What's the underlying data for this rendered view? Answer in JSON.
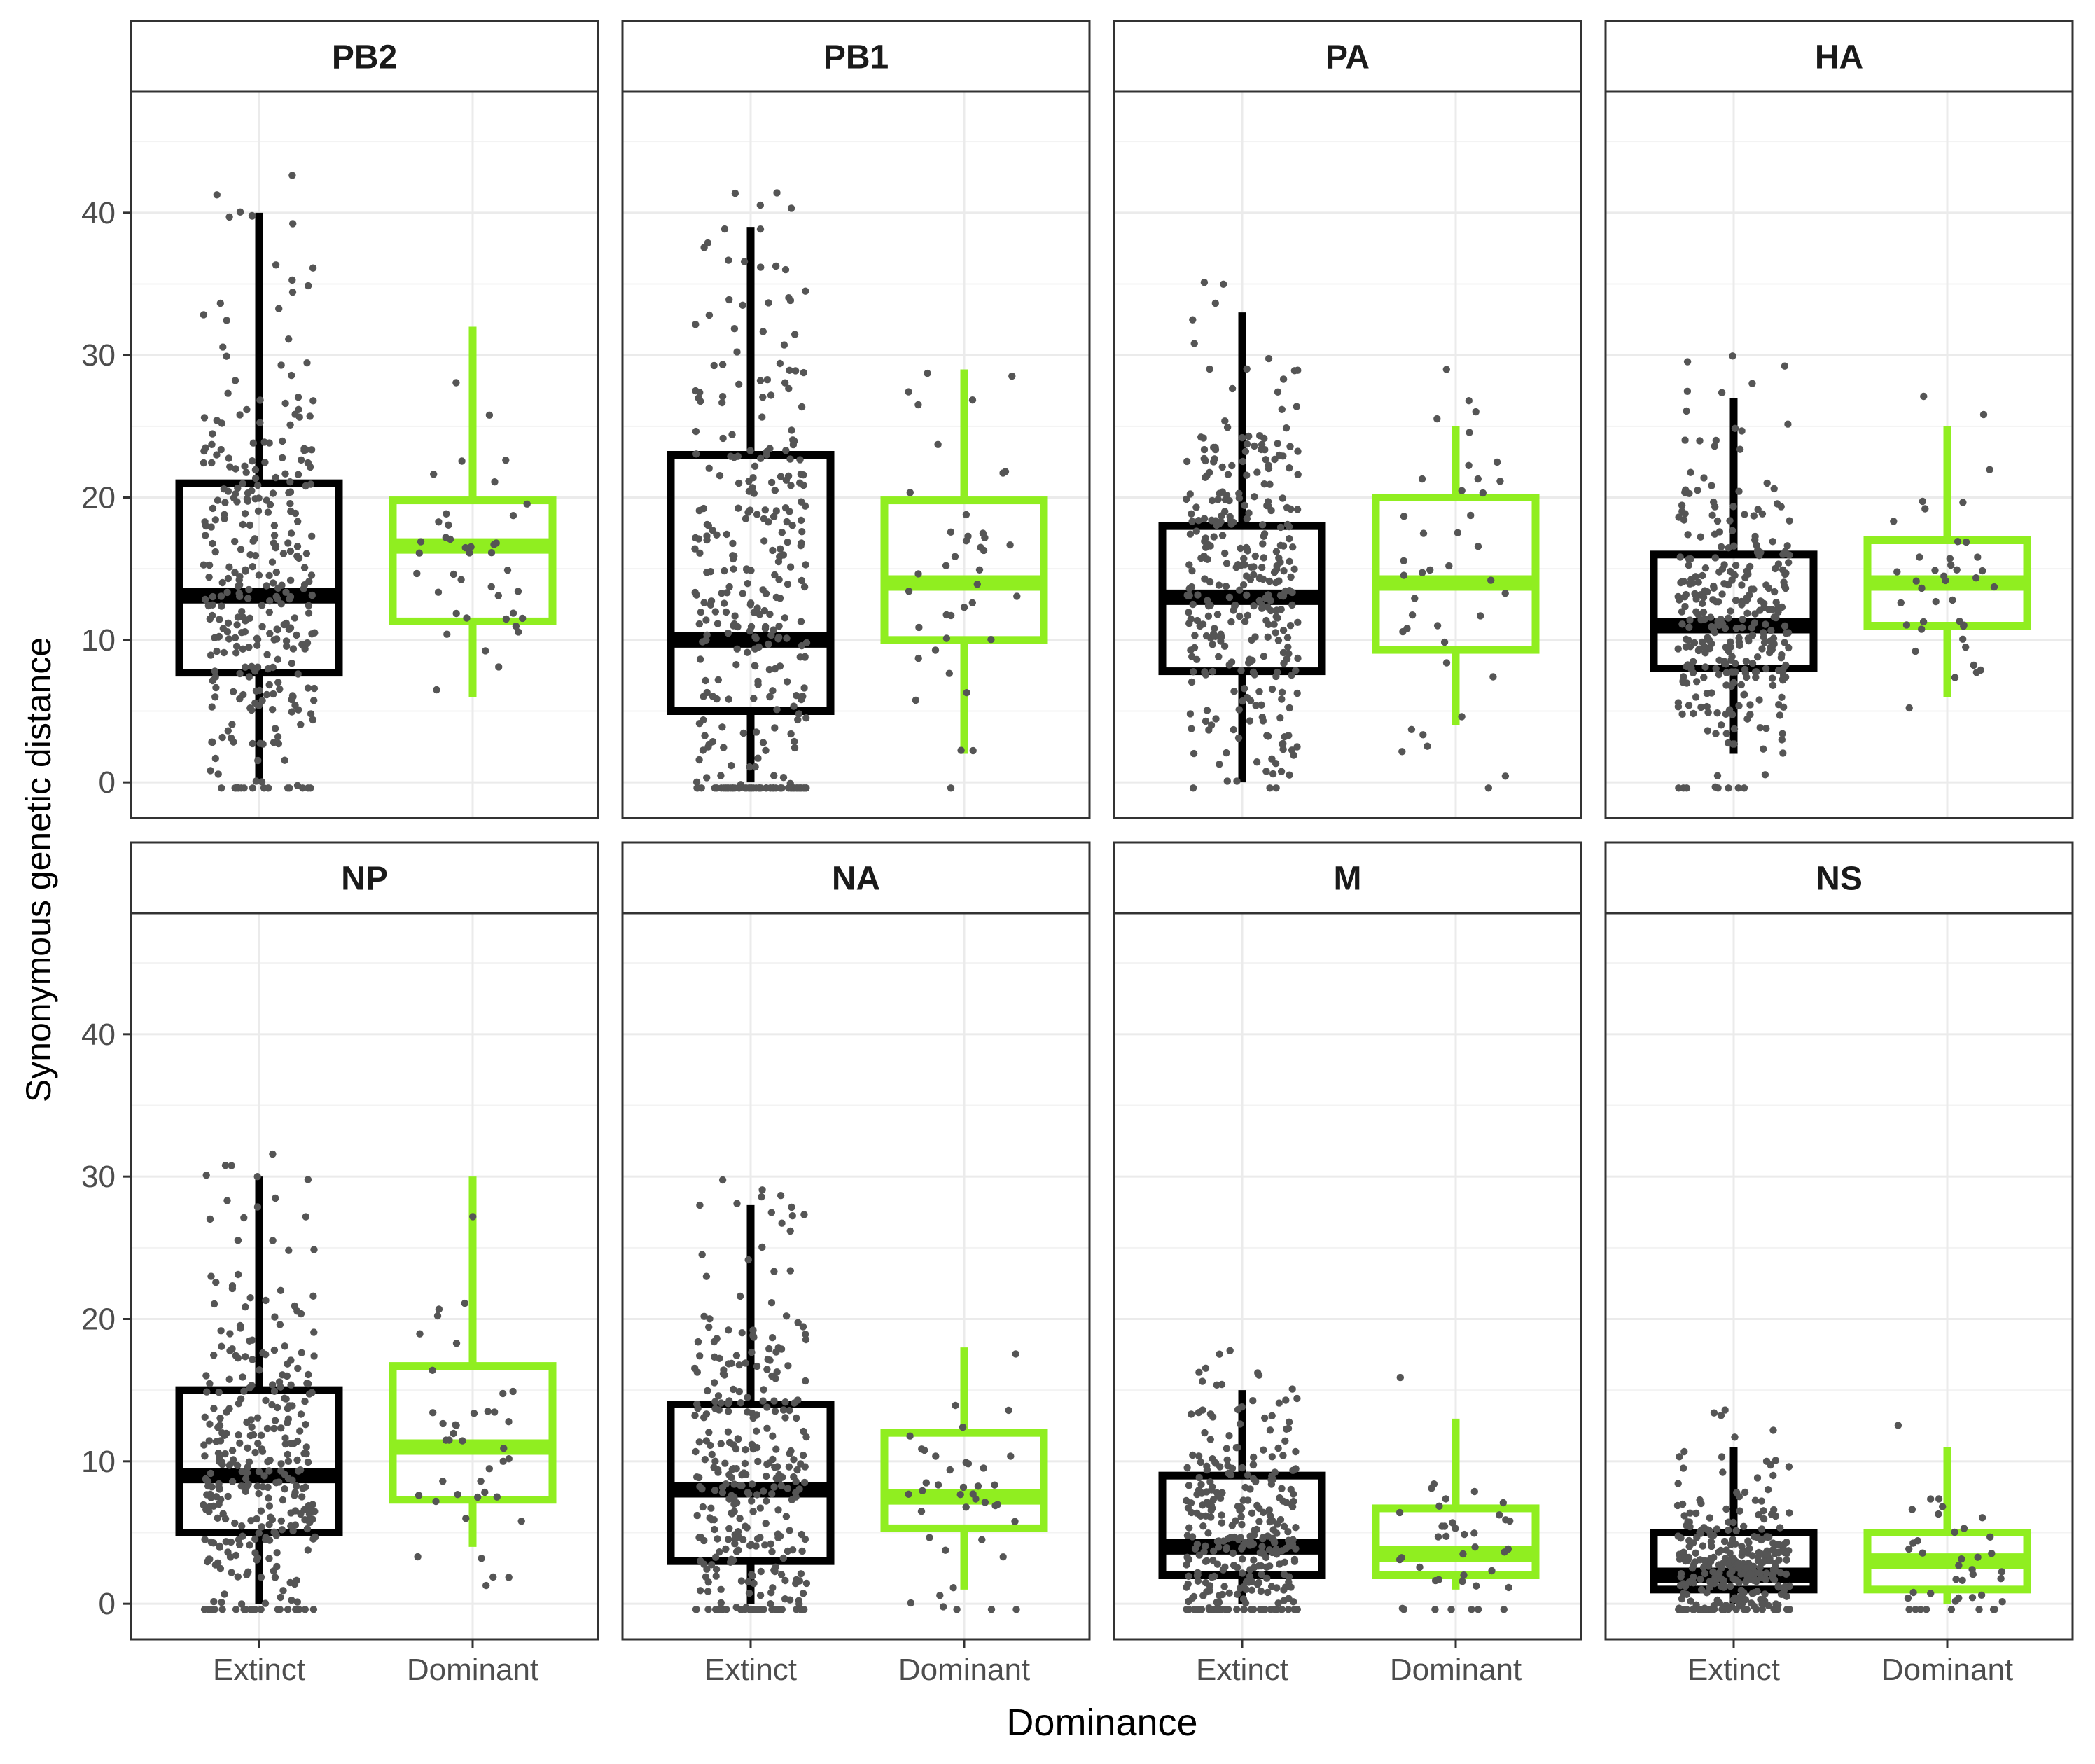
{
  "chart_data": {
    "type": "boxplot",
    "ylabel": "Synonymous genetic distance",
    "xlabel": "Dominance",
    "ylim": [
      -2.5,
      48.5
    ],
    "yticks": [
      0,
      10,
      20,
      30,
      40
    ],
    "categories": [
      "Extinct",
      "Dominant"
    ],
    "colors": {
      "Extinct": "#000000",
      "Dominant": "#90ee20",
      "points": "#555555",
      "grid": "#ebebeb",
      "strip_bg": "#ffffff"
    },
    "grid": true,
    "layout": "2 rows x 4 facets",
    "facets": [
      {
        "segment": "PB2",
        "boxes": [
          {
            "group": "Extinct",
            "whisker_low": 0,
            "q1": 7.7,
            "median": 13.1,
            "q3": 21.0,
            "whisker_high": 40,
            "n_points": 320
          },
          {
            "group": "Dominant",
            "whisker_low": 6,
            "q1": 11.3,
            "median": 16.6,
            "q3": 19.8,
            "whisker_high": 32,
            "n_points": 40
          }
        ]
      },
      {
        "segment": "PB1",
        "boxes": [
          {
            "group": "Extinct",
            "whisker_low": 0,
            "q1": 5.0,
            "median": 10.0,
            "q3": 23.0,
            "whisker_high": 39,
            "n_points": 320
          },
          {
            "group": "Dominant",
            "whisker_low": 2,
            "q1": 10.0,
            "median": 14.0,
            "q3": 19.8,
            "whisker_high": 29,
            "n_points": 40
          }
        ]
      },
      {
        "segment": "PA",
        "boxes": [
          {
            "group": "Extinct",
            "whisker_low": 0,
            "q1": 7.8,
            "median": 13.0,
            "q3": 18.0,
            "whisker_high": 33,
            "n_points": 320
          },
          {
            "group": "Dominant",
            "whisker_low": 4,
            "q1": 9.3,
            "median": 14.0,
            "q3": 20.0,
            "whisker_high": 25,
            "n_points": 40
          }
        ]
      },
      {
        "segment": "HA",
        "boxes": [
          {
            "group": "Extinct",
            "whisker_low": 2,
            "q1": 8.0,
            "median": 11.0,
            "q3": 16.0,
            "whisker_high": 27,
            "n_points": 320
          },
          {
            "group": "Dominant",
            "whisker_low": 6,
            "q1": 11.0,
            "median": 14.0,
            "q3": 17.0,
            "whisker_high": 25,
            "n_points": 40
          }
        ]
      },
      {
        "segment": "NP",
        "boxes": [
          {
            "group": "Extinct",
            "whisker_low": 0,
            "q1": 5.0,
            "median": 9.0,
            "q3": 15.0,
            "whisker_high": 30,
            "n_points": 320
          },
          {
            "group": "Dominant",
            "whisker_low": 4,
            "q1": 7.3,
            "median": 11.0,
            "q3": 16.7,
            "whisker_high": 30,
            "n_points": 40
          }
        ]
      },
      {
        "segment": "NA",
        "boxes": [
          {
            "group": "Extinct",
            "whisker_low": 0,
            "q1": 3.0,
            "median": 8.0,
            "q3": 14.0,
            "whisker_high": 28,
            "n_points": 320
          },
          {
            "group": "Dominant",
            "whisker_low": 1,
            "q1": 5.3,
            "median": 7.5,
            "q3": 12.0,
            "whisker_high": 18,
            "n_points": 40
          }
        ]
      },
      {
        "segment": "M",
        "boxes": [
          {
            "group": "Extinct",
            "whisker_low": 0,
            "q1": 2.0,
            "median": 4.0,
            "q3": 9.0,
            "whisker_high": 15,
            "n_points": 320
          },
          {
            "group": "Dominant",
            "whisker_low": 1,
            "q1": 2.0,
            "median": 3.5,
            "q3": 6.7,
            "whisker_high": 13,
            "n_points": 40
          }
        ]
      },
      {
        "segment": "NS",
        "boxes": [
          {
            "group": "Extinct",
            "whisker_low": 0,
            "q1": 1.0,
            "median": 2.0,
            "q3": 5.0,
            "whisker_high": 11,
            "n_points": 320
          },
          {
            "group": "Dominant",
            "whisker_low": 0,
            "q1": 1.0,
            "median": 3.0,
            "q3": 5.0,
            "whisker_high": 11,
            "n_points": 40
          }
        ]
      }
    ]
  }
}
